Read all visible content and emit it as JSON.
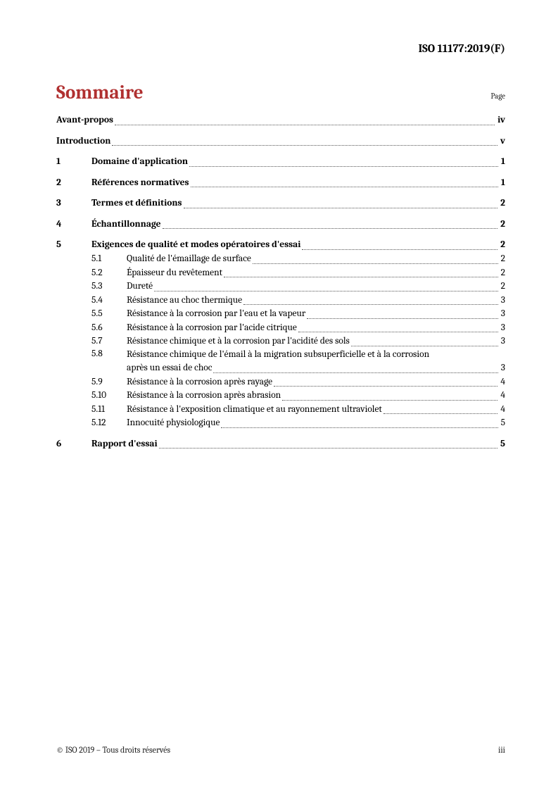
{
  "header": {
    "doc_id": "ISO 11177:2019(F)"
  },
  "title": "Sommaire",
  "page_label": "Page",
  "toc": {
    "front": [
      {
        "title": "Avant-propos",
        "page": "iv"
      },
      {
        "title": "Introduction",
        "page": "v"
      }
    ],
    "sections": [
      {
        "num": "1",
        "title": "Domaine d'application",
        "page": "1"
      },
      {
        "num": "2",
        "title": "Références normatives",
        "page": "1"
      },
      {
        "num": "3",
        "title": "Termes et définitions",
        "page": "2"
      },
      {
        "num": "4",
        "title": "Échantillonnage",
        "page": "2"
      },
      {
        "num": "5",
        "title": "Exigences de qualité et modes opératoires d'essai",
        "page": "2",
        "subs": [
          {
            "num": "5.1",
            "title": "Qualité de l'émaillage de surface",
            "page": "2"
          },
          {
            "num": "5.2",
            "title": "Épaisseur du revêtement",
            "page": "2"
          },
          {
            "num": "5.3",
            "title": "Dureté",
            "page": "2"
          },
          {
            "num": "5.4",
            "title": "Résistance au choc thermique",
            "page": "3"
          },
          {
            "num": "5.5",
            "title": "Résistance à la corrosion par l'eau et la vapeur",
            "page": "3"
          },
          {
            "num": "5.6",
            "title": "Résistance à la corrosion par l'acide citrique",
            "page": "3"
          },
          {
            "num": "5.7",
            "title": "Résistance chimique et à la corrosion par l'acidité des sols",
            "page": "3"
          },
          {
            "num": "5.8",
            "title_line1": "Résistance chimique de l'émail à la migration subsuperficielle et à la corrosion",
            "title_line2": "après un essai de choc",
            "page": "3"
          },
          {
            "num": "5.9",
            "title": "Résistance à la corrosion après rayage",
            "page": "4"
          },
          {
            "num": "5.10",
            "title": "Résistance à la corrosion après abrasion",
            "page": "4"
          },
          {
            "num": "5.11",
            "title": "Résistance à l'exposition climatique et au rayonnement ultraviolet",
            "page": "4"
          },
          {
            "num": "5.12",
            "title": "Innocuité physiologique",
            "page": "5"
          }
        ]
      },
      {
        "num": "6",
        "title": "Rapport d'essai",
        "page": "5"
      }
    ]
  },
  "footer": {
    "copyright": "© ISO 2019 – Tous droits réservés",
    "pagenum": "iii"
  }
}
